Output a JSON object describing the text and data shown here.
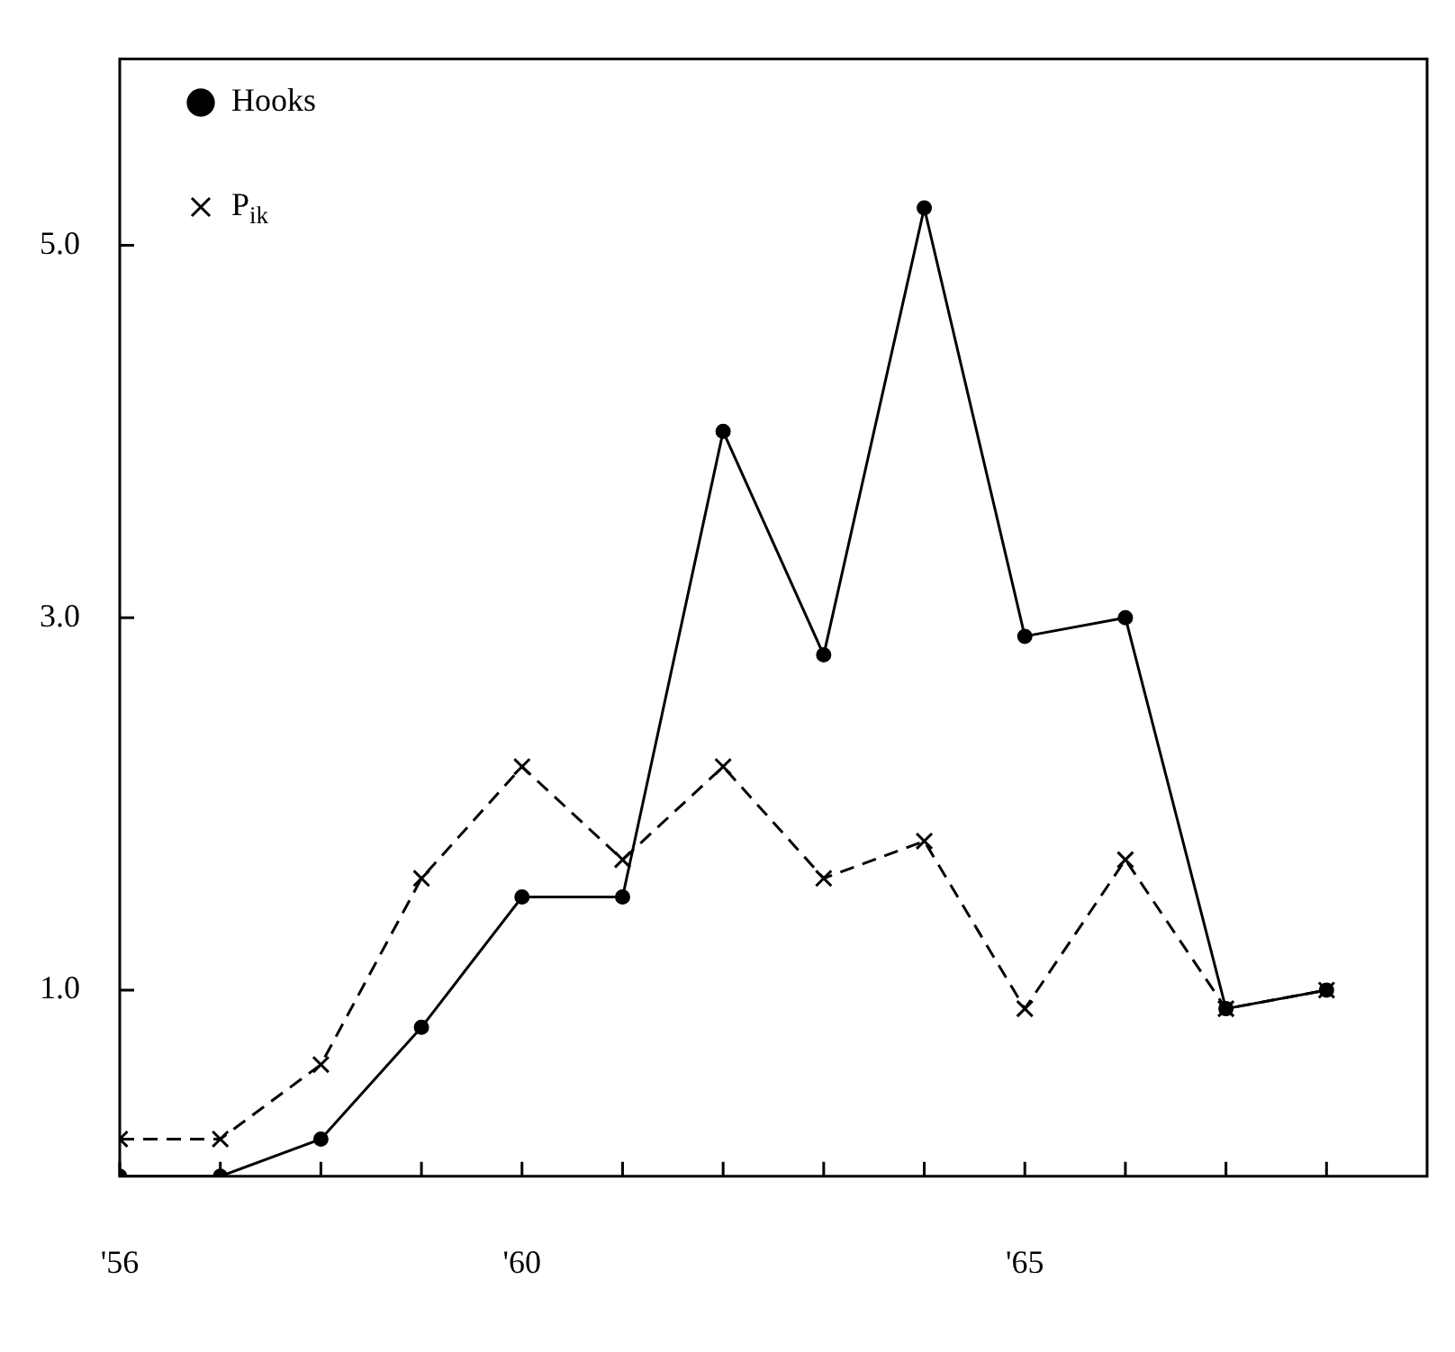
{
  "chart_data": {
    "type": "line",
    "x": [
      56,
      57,
      58,
      59,
      60,
      61,
      62,
      63,
      64,
      65,
      66,
      67,
      68
    ],
    "series": [
      {
        "name": "Hooks",
        "color": "#000000",
        "marker": "circle",
        "line_style": "solid",
        "values": [
          0,
          0,
          0.2,
          0.8,
          1.5,
          1.5,
          4.0,
          2.8,
          5.2,
          2.9,
          3.0,
          0.9,
          1.0
        ]
      },
      {
        "name": "P$_{ik}$",
        "color": "#000000",
        "marker": "cross",
        "line_style": "dashed",
        "values": [
          0.2,
          0.2,
          0.6,
          1.6,
          2.2,
          1.7,
          2.2,
          1.6,
          1.8,
          0.9,
          1.7,
          0.9,
          1.0
        ]
      }
    ],
    "xlim": [
      56,
      69
    ],
    "xticks": [
      {
        "value": 56,
        "label": "'56"
      },
      {
        "value": 57,
        "label": null
      },
      {
        "value": 58,
        "label": null
      },
      {
        "value": 59,
        "label": null
      },
      {
        "value": 60,
        "label": "'60"
      },
      {
        "value": 61,
        "label": null
      },
      {
        "value": 62,
        "label": null
      },
      {
        "value": 63,
        "label": null
      },
      {
        "value": 64,
        "label": null
      },
      {
        "value": 65,
        "label": "'65"
      },
      {
        "value": 66,
        "label": null
      },
      {
        "value": 67,
        "label": null
      },
      {
        "value": 68,
        "label": null
      }
    ],
    "ylim": [
      0,
      6
    ],
    "yticks": [
      {
        "value": 1,
        "label": "1.0"
      },
      {
        "value": 3,
        "label": "3.0"
      },
      {
        "value": 5,
        "label": "5.0"
      }
    ],
    "legend": "top left",
    "grid": false
  }
}
